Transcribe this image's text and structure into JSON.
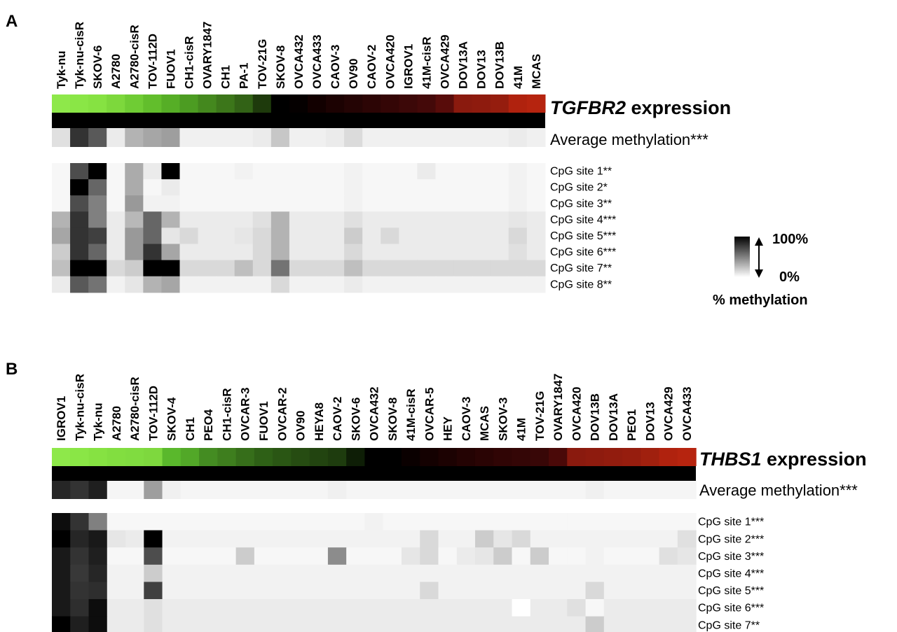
{
  "panels": [
    {
      "letter": "A",
      "gene": "TGFBR2",
      "gene_suffix": " expression",
      "average_label": "Average methylation***",
      "cell_lines": [
        "Tyk-nu",
        "Tyk-nu-cisR",
        "SKOV-6",
        "A2780",
        "A2780-cisR",
        "TOV-112D",
        "FUOV1",
        "CH1-cisR",
        "OVARY1847",
        "CH1",
        "PA-1",
        "TOV-21G",
        "SKOV-8",
        "OVCA432",
        "OVCA433",
        "CAOV-3",
        "OV90",
        "CAOV-2",
        "OVCA420",
        "IGROV1",
        "41M-cisR",
        "OVCA429",
        "DOV13A",
        "DOV13",
        "DOV13B",
        "41M",
        "MCAS"
      ],
      "site_labels": [
        "CpG site 1**",
        "CpG site 2*",
        "CpG site 3**",
        "CpG site 4***",
        "CpG site 5***",
        "CpG site 6***",
        "CpG site 7**",
        "CpG site 8**"
      ]
    },
    {
      "letter": "B",
      "gene": "THBS1",
      "gene_suffix": " expression",
      "average_label": "Average methylation***",
      "cell_lines": [
        "IGROV1",
        "Tyk-nu-cisR",
        "Tyk-nu",
        "A2780",
        "A2780-cisR",
        "TOV-112D",
        "SKOV-4",
        "CH1",
        "PEO4",
        "CH1-cisR",
        "OVCAR-3",
        "FUOV1",
        "OVCAR-2",
        "OV90",
        "HEYA8",
        "CAOV-2",
        "SKOV-6",
        "OVCA432",
        "SKOV-8",
        "41M-cisR",
        "OVCAR-5",
        "HEY",
        "CAOV-3",
        "MCAS",
        "SKOV-3",
        "41M",
        "TOV-21G",
        "OVARY1847",
        "OVCA420",
        "DOV13B",
        "DOV13A",
        "PEO1",
        "DOV13",
        "OVCA429",
        "OVCA433"
      ],
      "site_labels": [
        "CpG site 1***",
        "CpG site 2***",
        "CpG site 3***",
        "CpG site 4***",
        "CpG site 5***",
        "CpG site 6***",
        "CpG site 7**"
      ]
    }
  ],
  "legend": {
    "max_label": "100%",
    "min_label": "0%",
    "title": "% methylation"
  },
  "chart_data": [
    {
      "type": "heatmap",
      "title": "TGFBR2 expression",
      "columns": [
        "Tyk-nu",
        "Tyk-nu-cisR",
        "SKOV-6",
        "A2780",
        "A2780-cisR",
        "TOV-112D",
        "FUOV1",
        "CH1-cisR",
        "OVARY1847",
        "CH1",
        "PA-1",
        "TOV-21G",
        "SKOV-8",
        "OVCA432",
        "OVCA433",
        "CAOV-3",
        "OV90",
        "CAOV-2",
        "OVCA420",
        "IGROV1",
        "41M-cisR",
        "OVCA429",
        "DOV13A",
        "DOV13",
        "DOV13B",
        "41M",
        "MCAS"
      ],
      "expression_colors": [
        "#8ee84a",
        "#8ae646",
        "#86e242",
        "#7dd83c",
        "#6fcc34",
        "#62be2c",
        "#56ae26",
        "#4c9c22",
        "#44881e",
        "#3c761a",
        "#326216",
        "#1e3a0c",
        "#000000",
        "#050000",
        "#120000",
        "#1c0202",
        "#240404",
        "#2c0505",
        "#340606",
        "#3c0808",
        "#440909",
        "#580c0a",
        "#8a1a0e",
        "#8e1b0e",
        "#951d0e",
        "#b0220e",
        "#b6240f"
      ],
      "rows": [
        {
          "name": "Average methylation***",
          "values": [
            12,
            80,
            65,
            8,
            30,
            35,
            38,
            6,
            6,
            6,
            6,
            8,
            22,
            6,
            6,
            8,
            14,
            6,
            6,
            6,
            6,
            6,
            6,
            6,
            6,
            8,
            6
          ]
        },
        {
          "name": "CpG site 1**",
          "values": [
            3,
            70,
            100,
            3,
            33,
            8,
            100,
            3,
            3,
            3,
            5,
            3,
            3,
            3,
            3,
            3,
            5,
            3,
            3,
            3,
            8,
            3,
            3,
            3,
            3,
            5,
            3
          ]
        },
        {
          "name": "CpG site 2*",
          "values": [
            3,
            100,
            60,
            3,
            33,
            3,
            8,
            3,
            3,
            3,
            3,
            3,
            3,
            3,
            3,
            3,
            5,
            3,
            3,
            3,
            3,
            3,
            3,
            3,
            3,
            5,
            3
          ]
        },
        {
          "name": "CpG site 3**",
          "values": [
            3,
            70,
            50,
            3,
            40,
            5,
            5,
            3,
            3,
            3,
            3,
            3,
            3,
            3,
            3,
            3,
            5,
            3,
            3,
            3,
            3,
            3,
            3,
            3,
            3,
            5,
            3
          ]
        },
        {
          "name": "CpG site 4***",
          "values": [
            30,
            80,
            50,
            8,
            28,
            60,
            30,
            8,
            8,
            8,
            8,
            12,
            30,
            8,
            8,
            8,
            12,
            8,
            8,
            8,
            8,
            8,
            8,
            8,
            8,
            10,
            8
          ]
        },
        {
          "name": "CpG site 5***",
          "values": [
            35,
            80,
            75,
            8,
            40,
            60,
            10,
            15,
            8,
            8,
            10,
            15,
            30,
            8,
            8,
            8,
            20,
            8,
            15,
            8,
            8,
            8,
            8,
            8,
            8,
            15,
            8
          ]
        },
        {
          "name": "CpG site 6***",
          "values": [
            20,
            80,
            60,
            8,
            40,
            80,
            35,
            8,
            8,
            8,
            8,
            15,
            30,
            8,
            8,
            8,
            15,
            8,
            8,
            8,
            8,
            8,
            8,
            8,
            8,
            12,
            8
          ]
        },
        {
          "name": "CpG site 7**",
          "values": [
            25,
            100,
            100,
            15,
            20,
            100,
            100,
            15,
            15,
            15,
            25,
            15,
            55,
            15,
            15,
            15,
            25,
            15,
            15,
            15,
            15,
            15,
            15,
            15,
            15,
            15,
            15
          ]
        },
        {
          "name": "CpG site 8**",
          "values": [
            8,
            65,
            55,
            5,
            10,
            30,
            35,
            5,
            5,
            5,
            5,
            5,
            15,
            5,
            5,
            5,
            8,
            5,
            5,
            5,
            5,
            5,
            5,
            5,
            5,
            5,
            5
          ]
        }
      ]
    },
    {
      "type": "heatmap",
      "title": "THBS1 expression",
      "columns": [
        "IGROV1",
        "Tyk-nu-cisR",
        "Tyk-nu",
        "A2780",
        "A2780-cisR",
        "TOV-112D",
        "SKOV-4",
        "CH1",
        "PEO4",
        "CH1-cisR",
        "OVCAR-3",
        "FUOV1",
        "OVCAR-2",
        "OV90",
        "HEYA8",
        "CAOV-2",
        "SKOV-6",
        "OVCA432",
        "SKOV-8",
        "41M-cisR",
        "OVCAR-5",
        "HEY",
        "CAOV-3",
        "MCAS",
        "SKOV-3",
        "41M",
        "TOV-21G",
        "OVARY1847",
        "OVCA420",
        "DOV13B",
        "DOV13A",
        "PEO1",
        "DOV13",
        "OVCA429",
        "OVCA433"
      ],
      "expression_colors": [
        "#8ee84a",
        "#8ae646",
        "#86e242",
        "#82de40",
        "#80dc40",
        "#7ed83e",
        "#5ab82c",
        "#52a828",
        "#448c22",
        "#3e7e1e",
        "#366e1a",
        "#2e6016",
        "#2a5614",
        "#264c12",
        "#224410",
        "#1e3c0e",
        "#0e1e06",
        "#000000",
        "#000000",
        "#0a0000",
        "#140101",
        "#1c0202",
        "#240303",
        "#2a0404",
        "#300505",
        "#340606",
        "#380707",
        "#4a0908",
        "#8a1a0e",
        "#8e1b0e",
        "#921c0e",
        "#961d0e",
        "#a0200e",
        "#b0220e",
        "#b6240f"
      ],
      "rows": [
        {
          "name": "Average methylation***",
          "values": [
            85,
            80,
            88,
            4,
            4,
            38,
            6,
            4,
            4,
            4,
            4,
            4,
            4,
            4,
            4,
            6,
            4,
            4,
            4,
            4,
            4,
            4,
            4,
            4,
            4,
            4,
            4,
            4,
            4,
            6,
            4,
            4,
            4,
            4,
            4
          ]
        },
        {
          "name": "CpG site 1***",
          "values": [
            95,
            80,
            50,
            3,
            3,
            3,
            3,
            3,
            3,
            3,
            3,
            3,
            3,
            3,
            3,
            3,
            3,
            5,
            3,
            3,
            3,
            3,
            3,
            3,
            3,
            3,
            3,
            3,
            3,
            3,
            3,
            3,
            3,
            3,
            3
          ]
        },
        {
          "name": "CpG site 2***",
          "values": [
            100,
            85,
            90,
            10,
            8,
            100,
            5,
            5,
            5,
            5,
            5,
            5,
            5,
            5,
            5,
            5,
            5,
            5,
            5,
            5,
            15,
            5,
            5,
            20,
            10,
            15,
            5,
            5,
            5,
            5,
            5,
            5,
            5,
            5,
            12
          ]
        },
        {
          "name": "CpG site 3***",
          "values": [
            90,
            80,
            88,
            3,
            3,
            70,
            3,
            3,
            3,
            3,
            20,
            3,
            3,
            3,
            3,
            45,
            3,
            3,
            3,
            10,
            15,
            3,
            8,
            10,
            20,
            3,
            20,
            3,
            3,
            5,
            3,
            3,
            3,
            12,
            10
          ]
        },
        {
          "name": "CpG site 4***",
          "values": [
            90,
            78,
            85,
            5,
            5,
            20,
            5,
            5,
            5,
            5,
            5,
            5,
            5,
            5,
            5,
            5,
            5,
            5,
            5,
            5,
            5,
            5,
            5,
            5,
            5,
            5,
            5,
            5,
            5,
            5,
            5,
            5,
            5,
            5,
            5
          ]
        },
        {
          "name": "CpG site 5***",
          "values": [
            90,
            80,
            82,
            5,
            5,
            75,
            5,
            5,
            5,
            5,
            5,
            5,
            5,
            5,
            5,
            5,
            5,
            5,
            5,
            5,
            15,
            5,
            5,
            5,
            5,
            5,
            5,
            5,
            5,
            15,
            5,
            5,
            5,
            5,
            5
          ]
        },
        {
          "name": "CpG site 6***",
          "values": [
            90,
            82,
            95,
            8,
            8,
            12,
            8,
            8,
            8,
            8,
            8,
            8,
            8,
            8,
            8,
            8,
            8,
            8,
            8,
            8,
            8,
            8,
            8,
            8,
            8,
            0,
            8,
            8,
            12,
            3,
            8,
            8,
            8,
            8,
            8
          ]
        },
        {
          "name": "CpG site 7**",
          "values": [
            100,
            88,
            95,
            8,
            8,
            12,
            8,
            8,
            8,
            8,
            8,
            8,
            8,
            8,
            8,
            8,
            8,
            8,
            8,
            8,
            8,
            8,
            8,
            8,
            8,
            8,
            8,
            8,
            8,
            20,
            8,
            8,
            8,
            8,
            8
          ]
        }
      ]
    }
  ]
}
